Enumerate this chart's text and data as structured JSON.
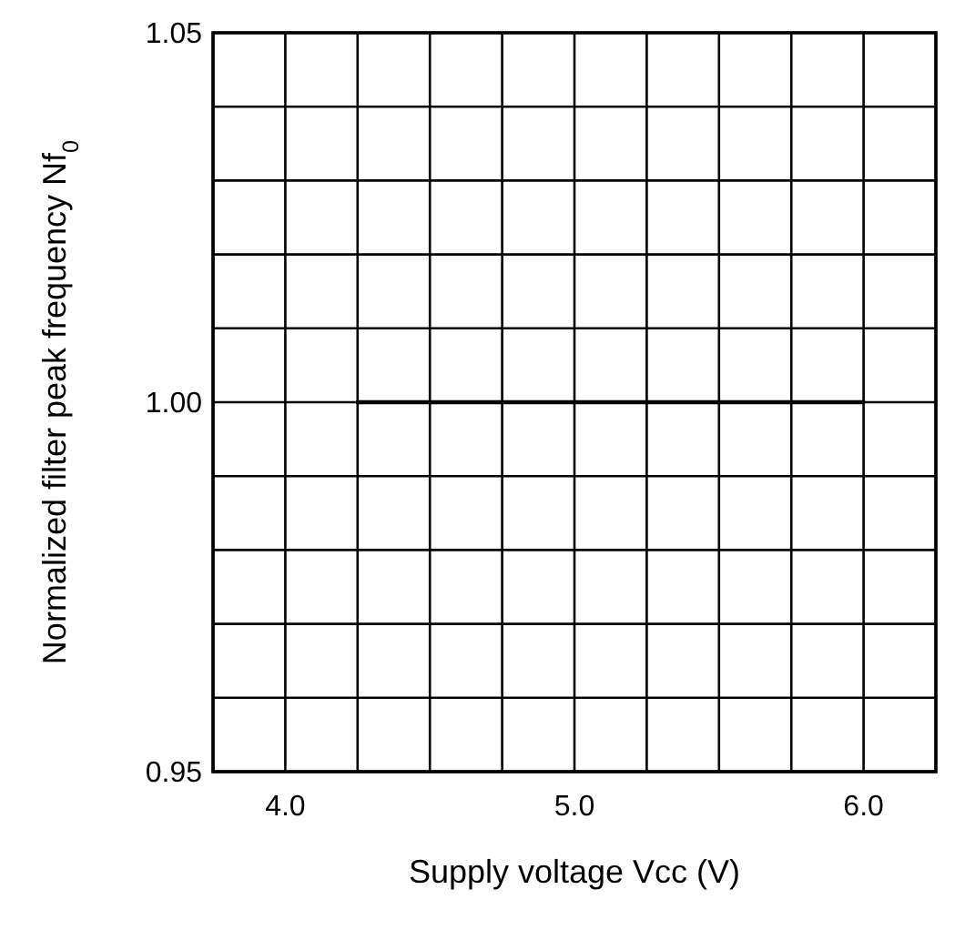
{
  "chart_data": {
    "type": "line",
    "xlabel": "Supply voltage Vcc (V)",
    "ylabel": "Normalized filter peak frequency Nf$_{0}$",
    "x": [
      4.25,
      6.0
    ],
    "series": [
      {
        "color": "#000000",
        "values": [
          1.0,
          1.0
        ]
      }
    ],
    "xlim": [
      3.75,
      6.25
    ],
    "xticks": [
      {
        "value": 3.75,
        "label": null
      },
      {
        "value": 4,
        "label": "4.0"
      },
      {
        "value": 4.25,
        "label": null
      },
      {
        "value": 4.5,
        "label": null
      },
      {
        "value": 4.75,
        "label": null
      },
      {
        "value": 5,
        "label": "5.0"
      },
      {
        "value": 5.25,
        "label": null
      },
      {
        "value": 5.5,
        "label": null
      },
      {
        "value": 5.75,
        "label": null
      },
      {
        "value": 6,
        "label": "6.0"
      },
      {
        "value": 6.25,
        "label": null
      }
    ],
    "ylim": [
      0.95,
      1.05
    ],
    "yticks": [
      0.95,
      {
        "value": 0.96,
        "label": null
      },
      {
        "value": 0.97,
        "label": null
      },
      {
        "value": 0.98,
        "label": null
      },
      {
        "value": 0.99,
        "label": null
      },
      {
        "value": 1,
        "label": "1.00"
      },
      {
        "value": 1.01,
        "label": null
      },
      {
        "value": 1.02,
        "label": null
      },
      {
        "value": 1.03,
        "label": null
      },
      {
        "value": 1.04,
        "label": null
      },
      1.05
    ],
    "grid": true,
    "marker": "none",
    "line_style": "solid"
  }
}
